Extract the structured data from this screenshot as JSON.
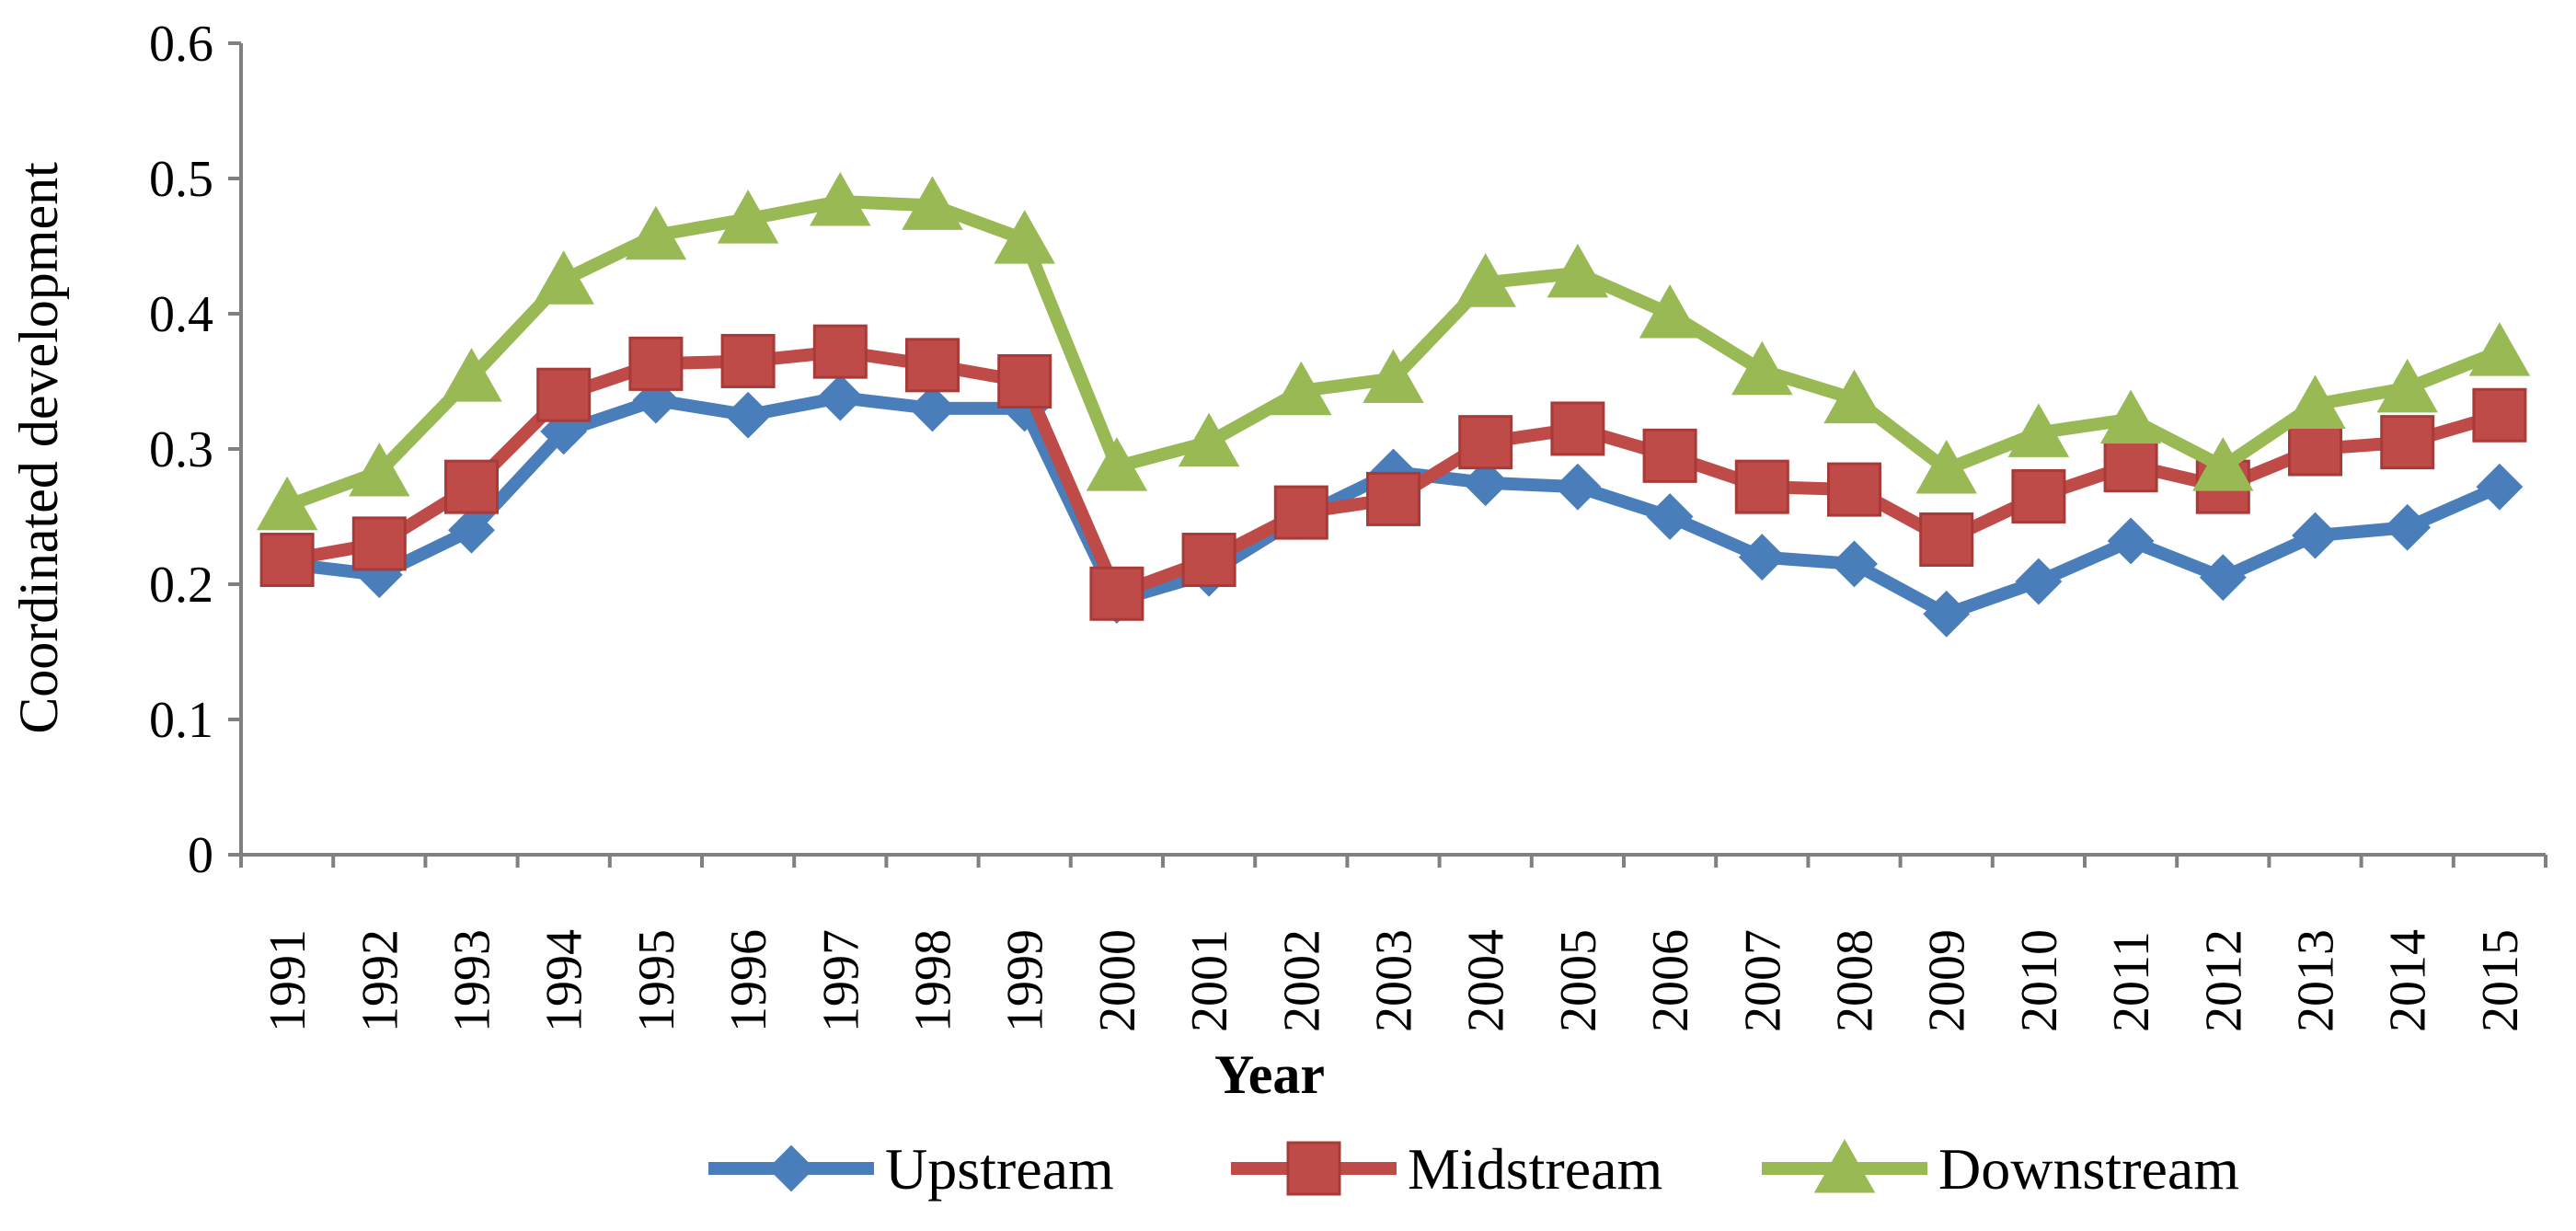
{
  "chart_data": {
    "type": "line",
    "title": "",
    "xlabel": "Year",
    "ylabel": "Coordinated development",
    "ylim": [
      0,
      0.6
    ],
    "yticks": [
      "0",
      "0.1",
      "0.2",
      "0.3",
      "0.4",
      "0.5",
      "0.6"
    ],
    "ytick_values": [
      0,
      0.1,
      0.2,
      0.3,
      0.4,
      0.5,
      0.6
    ],
    "categories": [
      "1991",
      "1992",
      "1993",
      "1994",
      "1995",
      "1996",
      "1997",
      "1998",
      "1999",
      "2000",
      "2001",
      "2002",
      "2003",
      "2004",
      "2005",
      "2006",
      "2007",
      "2008",
      "2009",
      "2010",
      "2011",
      "2012",
      "2013",
      "2014",
      "2015"
    ],
    "grid": false,
    "legend_position": "bottom",
    "series": [
      {
        "name": "Upstream",
        "marker": "diamond",
        "color": "#4A7EBB",
        "values": [
          0.215,
          0.207,
          0.24,
          0.313,
          0.336,
          0.325,
          0.338,
          0.33,
          0.33,
          0.188,
          0.208,
          0.25,
          0.283,
          0.275,
          0.272,
          0.25,
          0.22,
          0.215,
          0.178,
          0.202,
          0.232,
          0.205,
          0.236,
          0.242,
          0.272
        ]
      },
      {
        "name": "Midstream",
        "marker": "square",
        "color": "#BE4B48",
        "values": [
          0.218,
          0.23,
          0.272,
          0.34,
          0.363,
          0.365,
          0.372,
          0.362,
          0.35,
          0.193,
          0.218,
          0.253,
          0.263,
          0.305,
          0.315,
          0.295,
          0.272,
          0.27,
          0.233,
          0.265,
          0.288,
          0.272,
          0.3,
          0.305,
          0.325
        ]
      },
      {
        "name": "Downstream",
        "marker": "triangle",
        "color": "#98B954",
        "values": [
          0.258,
          0.283,
          0.353,
          0.425,
          0.458,
          0.47,
          0.483,
          0.48,
          0.455,
          0.287,
          0.305,
          0.343,
          0.352,
          0.423,
          0.43,
          0.4,
          0.358,
          0.337,
          0.285,
          0.312,
          0.322,
          0.287,
          0.333,
          0.345,
          0.372
        ]
      }
    ]
  }
}
